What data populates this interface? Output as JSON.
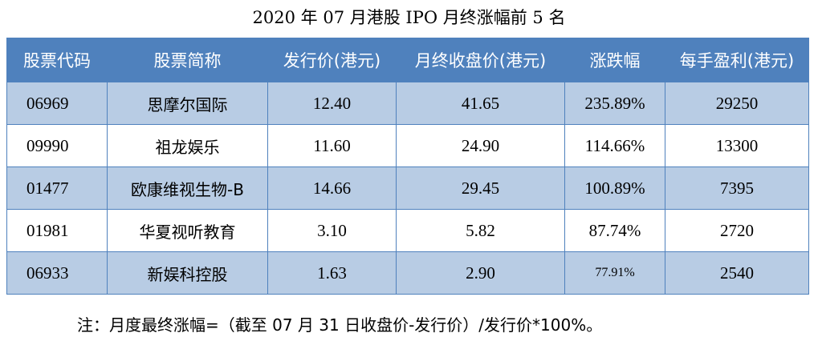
{
  "title": "2020 年 07 月港股 IPO 月终涨幅前 5 名",
  "table": {
    "headers": [
      "股票代码",
      "股票简称",
      "发行价(港元)",
      "月终收盘价(港元)",
      "涨跌幅",
      "每手盈利(港元)"
    ],
    "rows": [
      {
        "code": "06969",
        "name": "思摩尔国际",
        "issue_price": "12.40",
        "close_price": "41.65",
        "change": "235.89%",
        "lot_profit": "29250"
      },
      {
        "code": "09990",
        "name": "祖龙娱乐",
        "issue_price": "11.60",
        "close_price": "24.90",
        "change": "114.66%",
        "lot_profit": "13300"
      },
      {
        "code": "01477",
        "name": "欧康维视生物-B",
        "issue_price": "14.66",
        "close_price": "29.45",
        "change": "100.89%",
        "lot_profit": "7395"
      },
      {
        "code": "01981",
        "name": "华夏视听教育",
        "issue_price": "3.10",
        "close_price": "5.82",
        "change": "87.74%",
        "lot_profit": "2720"
      },
      {
        "code": "06933",
        "name": "新娱科控股",
        "issue_price": "1.63",
        "close_price": "2.90",
        "change": "77.91%",
        "lot_profit": "2540"
      }
    ]
  },
  "note": "注：月度最终涨幅=（截至 07 月 31 日收盘价-发行价）/发行价*100%。",
  "colors": {
    "header_bg": "#4f81bd",
    "header_text": "#ffffff",
    "row_alt_bg": "#b8cce4",
    "border": "#4f81bd"
  }
}
